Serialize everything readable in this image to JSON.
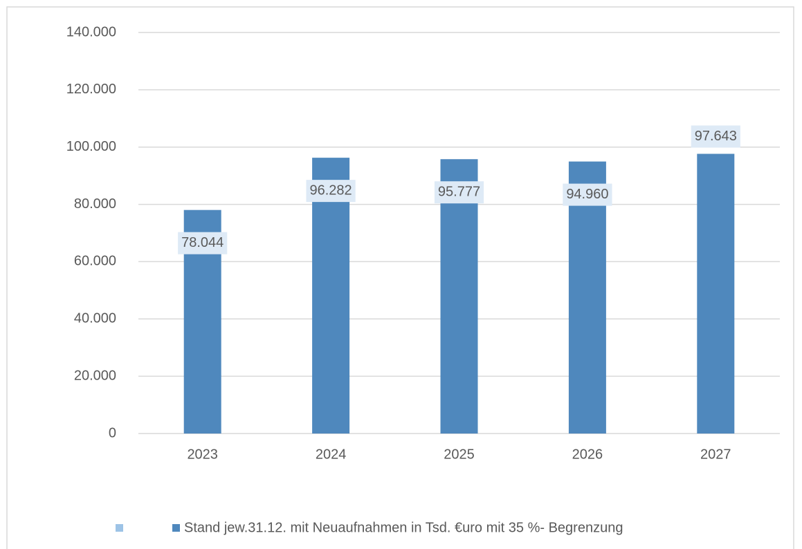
{
  "chart_data": {
    "type": "bar",
    "categories": [
      "2023",
      "2024",
      "2025",
      "2026",
      "2027"
    ],
    "series": [
      {
        "name": "Stand jew.31.12. mit Neuaufnahmen in Tsd. €uro mit 35 %- Begrenzung",
        "color": "#4f88bd",
        "values": [
          78044,
          96282,
          95777,
          94960,
          97643
        ],
        "value_labels": [
          "78.044",
          "96.282",
          "95.777",
          "94.960",
          "97.643"
        ]
      }
    ],
    "ylim": [
      0,
      140000
    ],
    "yticks": [
      0,
      {
        "value": 20000,
        "label": "20.000"
      },
      {
        "value": 40000,
        "label": "40.000"
      },
      {
        "value": 60000,
        "label": "60.000"
      },
      {
        "value": 80000,
        "label": "80.000"
      },
      {
        "value": 100000,
        "label": "100.000"
      },
      {
        "value": 120000,
        "label": "120.000"
      },
      {
        "value": 140000,
        "label": "140.000"
      }
    ],
    "grid": true,
    "legend": "bottom"
  }
}
